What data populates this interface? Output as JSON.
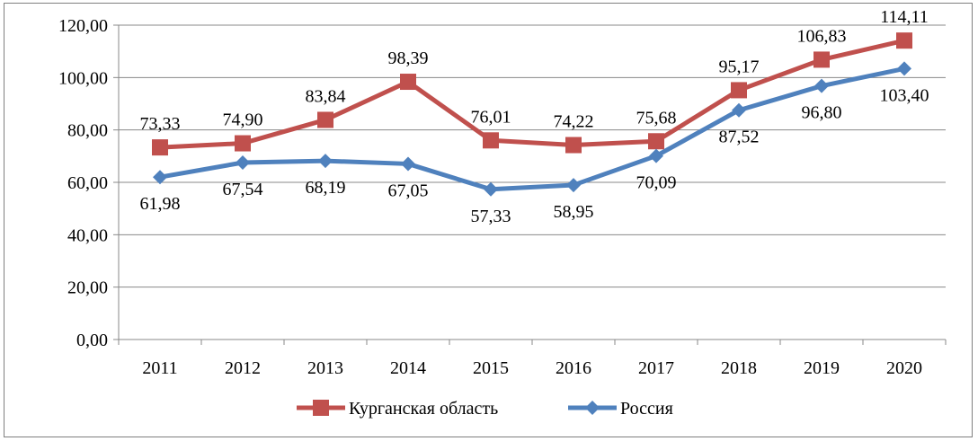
{
  "chart_data": {
    "type": "line",
    "title": "",
    "xlabel": "",
    "ylabel": "",
    "categories": [
      "2011",
      "2012",
      "2013",
      "2014",
      "2015",
      "2016",
      "2017",
      "2018",
      "2019",
      "2020"
    ],
    "ylim": [
      0,
      120
    ],
    "ystep": 20,
    "ytick_labels": [
      "0,00",
      "20,00",
      "40,00",
      "60,00",
      "80,00",
      "100,00",
      "120,00"
    ],
    "grid": "horizontal",
    "legend_position": "bottom",
    "series": [
      {
        "name": "Курганская область",
        "color": "#c0504d",
        "marker": "square",
        "values": [
          73.33,
          74.9,
          83.84,
          98.39,
          76.01,
          74.22,
          75.68,
          95.17,
          106.83,
          114.11
        ],
        "labels": [
          "73,33",
          "74,90",
          "83,84",
          "98,39",
          "76,01",
          "74,22",
          "75,68",
          "95,17",
          "106,83",
          "114,11"
        ]
      },
      {
        "name": "Россия",
        "color": "#4f81bd",
        "marker": "diamond",
        "values": [
          61.98,
          67.54,
          68.19,
          67.05,
          57.33,
          58.95,
          70.09,
          87.52,
          96.8,
          103.4
        ],
        "labels": [
          "61,98",
          "67,54",
          "68,19",
          "67,05",
          "57,33",
          "58,95",
          "70,09",
          "87,52",
          "96,80",
          "103,40"
        ]
      }
    ]
  }
}
